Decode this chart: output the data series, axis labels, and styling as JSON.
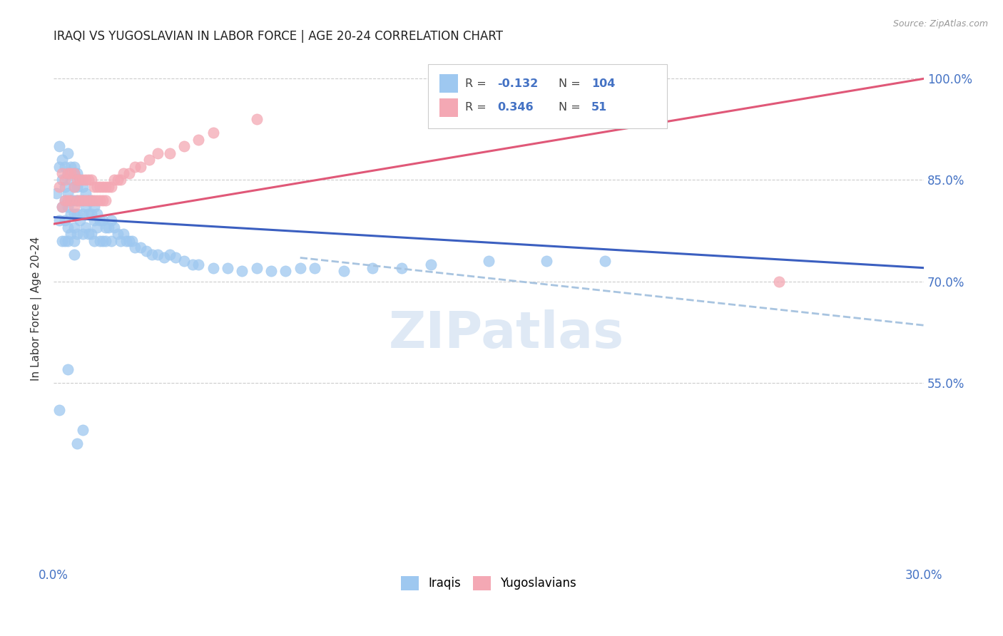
{
  "title": "IRAQI VS YUGOSLAVIAN IN LABOR FORCE | AGE 20-24 CORRELATION CHART",
  "source": "Source: ZipAtlas.com",
  "ylabel": "In Labor Force | Age 20-24",
  "watermark": "ZIPatlas",
  "xlim": [
    0.0,
    0.3
  ],
  "ylim": [
    0.28,
    1.04
  ],
  "iraqis_color": "#9EC8F0",
  "yugoslavians_color": "#F4A8B4",
  "blue_line_color": "#3B5FC0",
  "pink_line_color": "#E05878",
  "dashed_line_color": "#A8C4E0",
  "title_color": "#222222",
  "axis_label_color": "#333333",
  "tick_color": "#4472C4",
  "grid_color": "#CCCCCC",
  "background_color": "#FFFFFF",
  "iraqis_R": "-0.132",
  "iraqis_N": "104",
  "yugoslavians_R": "0.346",
  "yugoslavians_N": "51",
  "blue_line_x": [
    0.0,
    0.3
  ],
  "blue_line_y": [
    0.795,
    0.72
  ],
  "dashed_line_x": [
    0.085,
    0.3
  ],
  "dashed_line_y": [
    0.735,
    0.635
  ],
  "pink_line_x": [
    0.0,
    0.3
  ],
  "pink_line_y": [
    0.785,
    1.0
  ],
  "iraqis_x": [
    0.001,
    0.002,
    0.002,
    0.002,
    0.003,
    0.003,
    0.003,
    0.003,
    0.004,
    0.004,
    0.004,
    0.004,
    0.004,
    0.005,
    0.005,
    0.005,
    0.005,
    0.005,
    0.005,
    0.006,
    0.006,
    0.006,
    0.006,
    0.006,
    0.007,
    0.007,
    0.007,
    0.007,
    0.007,
    0.007,
    0.007,
    0.007,
    0.008,
    0.008,
    0.008,
    0.008,
    0.008,
    0.009,
    0.009,
    0.009,
    0.01,
    0.01,
    0.01,
    0.01,
    0.011,
    0.011,
    0.011,
    0.012,
    0.012,
    0.012,
    0.013,
    0.013,
    0.013,
    0.014,
    0.014,
    0.014,
    0.015,
    0.015,
    0.016,
    0.016,
    0.017,
    0.017,
    0.018,
    0.018,
    0.019,
    0.02,
    0.02,
    0.021,
    0.022,
    0.023,
    0.024,
    0.025,
    0.026,
    0.027,
    0.028,
    0.03,
    0.032,
    0.034,
    0.036,
    0.038,
    0.04,
    0.042,
    0.045,
    0.048,
    0.05,
    0.055,
    0.06,
    0.065,
    0.07,
    0.075,
    0.08,
    0.085,
    0.09,
    0.1,
    0.11,
    0.12,
    0.13,
    0.15,
    0.17,
    0.19,
    0.002,
    0.005,
    0.01,
    0.008
  ],
  "iraqis_y": [
    0.83,
    0.87,
    0.9,
    0.79,
    0.88,
    0.85,
    0.81,
    0.76,
    0.87,
    0.84,
    0.82,
    0.79,
    0.76,
    0.89,
    0.86,
    0.83,
    0.81,
    0.78,
    0.76,
    0.87,
    0.85,
    0.82,
    0.8,
    0.77,
    0.87,
    0.86,
    0.84,
    0.82,
    0.8,
    0.78,
    0.76,
    0.74,
    0.86,
    0.84,
    0.82,
    0.8,
    0.77,
    0.85,
    0.82,
    0.79,
    0.84,
    0.82,
    0.8,
    0.77,
    0.83,
    0.81,
    0.78,
    0.82,
    0.8,
    0.77,
    0.82,
    0.8,
    0.77,
    0.81,
    0.79,
    0.76,
    0.8,
    0.78,
    0.79,
    0.76,
    0.79,
    0.76,
    0.78,
    0.76,
    0.78,
    0.79,
    0.76,
    0.78,
    0.77,
    0.76,
    0.77,
    0.76,
    0.76,
    0.76,
    0.75,
    0.75,
    0.745,
    0.74,
    0.74,
    0.735,
    0.74,
    0.735,
    0.73,
    0.725,
    0.725,
    0.72,
    0.72,
    0.715,
    0.72,
    0.715,
    0.715,
    0.72,
    0.72,
    0.715,
    0.72,
    0.72,
    0.725,
    0.73,
    0.73,
    0.73,
    0.51,
    0.57,
    0.48,
    0.46
  ],
  "yugoslavians_x": [
    0.002,
    0.003,
    0.003,
    0.004,
    0.004,
    0.005,
    0.005,
    0.006,
    0.006,
    0.007,
    0.007,
    0.007,
    0.008,
    0.008,
    0.009,
    0.009,
    0.01,
    0.01,
    0.011,
    0.011,
    0.012,
    0.012,
    0.013,
    0.013,
    0.014,
    0.014,
    0.015,
    0.015,
    0.016,
    0.016,
    0.017,
    0.017,
    0.018,
    0.018,
    0.019,
    0.02,
    0.021,
    0.022,
    0.023,
    0.024,
    0.026,
    0.028,
    0.03,
    0.033,
    0.036,
    0.04,
    0.045,
    0.05,
    0.055,
    0.07,
    0.25
  ],
  "yugoslavians_y": [
    0.84,
    0.86,
    0.81,
    0.85,
    0.82,
    0.86,
    0.82,
    0.86,
    0.82,
    0.86,
    0.84,
    0.81,
    0.85,
    0.82,
    0.85,
    0.82,
    0.85,
    0.82,
    0.85,
    0.82,
    0.85,
    0.82,
    0.85,
    0.82,
    0.84,
    0.82,
    0.84,
    0.82,
    0.84,
    0.82,
    0.84,
    0.82,
    0.84,
    0.82,
    0.84,
    0.84,
    0.85,
    0.85,
    0.85,
    0.86,
    0.86,
    0.87,
    0.87,
    0.88,
    0.89,
    0.89,
    0.9,
    0.91,
    0.92,
    0.94,
    0.7
  ]
}
